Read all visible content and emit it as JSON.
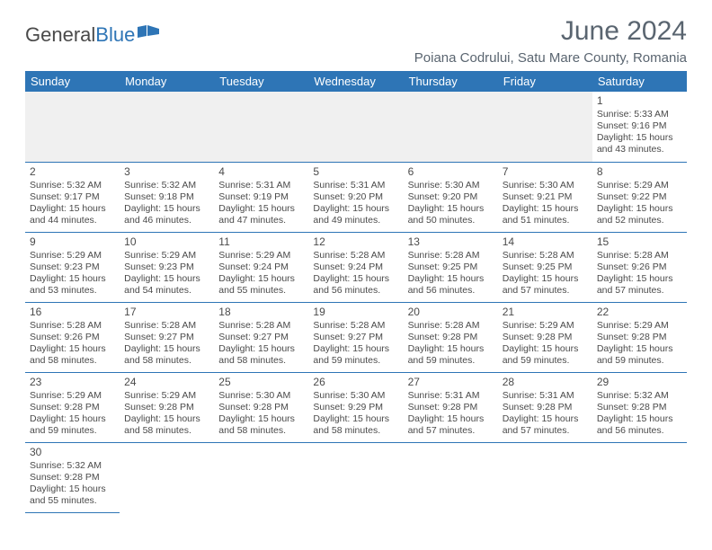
{
  "logo": {
    "text1": "General",
    "text2": "Blue"
  },
  "title": "June 2024",
  "location": "Poiana Codrului, Satu Mare County, Romania",
  "colors": {
    "header_bg": "#2e75b6",
    "header_text": "#ffffff",
    "border": "#2e75b6",
    "blank_bg": "#f0f0f0",
    "text": "#4a4a4a"
  },
  "weekdays": [
    "Sunday",
    "Monday",
    "Tuesday",
    "Wednesday",
    "Thursday",
    "Friday",
    "Saturday"
  ],
  "weeks": [
    [
      null,
      null,
      null,
      null,
      null,
      null,
      {
        "n": "1",
        "sr": "Sunrise: 5:33 AM",
        "ss": "Sunset: 9:16 PM",
        "d1": "Daylight: 15 hours",
        "d2": "and 43 minutes."
      }
    ],
    [
      {
        "n": "2",
        "sr": "Sunrise: 5:32 AM",
        "ss": "Sunset: 9:17 PM",
        "d1": "Daylight: 15 hours",
        "d2": "and 44 minutes."
      },
      {
        "n": "3",
        "sr": "Sunrise: 5:32 AM",
        "ss": "Sunset: 9:18 PM",
        "d1": "Daylight: 15 hours",
        "d2": "and 46 minutes."
      },
      {
        "n": "4",
        "sr": "Sunrise: 5:31 AM",
        "ss": "Sunset: 9:19 PM",
        "d1": "Daylight: 15 hours",
        "d2": "and 47 minutes."
      },
      {
        "n": "5",
        "sr": "Sunrise: 5:31 AM",
        "ss": "Sunset: 9:20 PM",
        "d1": "Daylight: 15 hours",
        "d2": "and 49 minutes."
      },
      {
        "n": "6",
        "sr": "Sunrise: 5:30 AM",
        "ss": "Sunset: 9:20 PM",
        "d1": "Daylight: 15 hours",
        "d2": "and 50 minutes."
      },
      {
        "n": "7",
        "sr": "Sunrise: 5:30 AM",
        "ss": "Sunset: 9:21 PM",
        "d1": "Daylight: 15 hours",
        "d2": "and 51 minutes."
      },
      {
        "n": "8",
        "sr": "Sunrise: 5:29 AM",
        "ss": "Sunset: 9:22 PM",
        "d1": "Daylight: 15 hours",
        "d2": "and 52 minutes."
      }
    ],
    [
      {
        "n": "9",
        "sr": "Sunrise: 5:29 AM",
        "ss": "Sunset: 9:23 PM",
        "d1": "Daylight: 15 hours",
        "d2": "and 53 minutes."
      },
      {
        "n": "10",
        "sr": "Sunrise: 5:29 AM",
        "ss": "Sunset: 9:23 PM",
        "d1": "Daylight: 15 hours",
        "d2": "and 54 minutes."
      },
      {
        "n": "11",
        "sr": "Sunrise: 5:29 AM",
        "ss": "Sunset: 9:24 PM",
        "d1": "Daylight: 15 hours",
        "d2": "and 55 minutes."
      },
      {
        "n": "12",
        "sr": "Sunrise: 5:28 AM",
        "ss": "Sunset: 9:24 PM",
        "d1": "Daylight: 15 hours",
        "d2": "and 56 minutes."
      },
      {
        "n": "13",
        "sr": "Sunrise: 5:28 AM",
        "ss": "Sunset: 9:25 PM",
        "d1": "Daylight: 15 hours",
        "d2": "and 56 minutes."
      },
      {
        "n": "14",
        "sr": "Sunrise: 5:28 AM",
        "ss": "Sunset: 9:25 PM",
        "d1": "Daylight: 15 hours",
        "d2": "and 57 minutes."
      },
      {
        "n": "15",
        "sr": "Sunrise: 5:28 AM",
        "ss": "Sunset: 9:26 PM",
        "d1": "Daylight: 15 hours",
        "d2": "and 57 minutes."
      }
    ],
    [
      {
        "n": "16",
        "sr": "Sunrise: 5:28 AM",
        "ss": "Sunset: 9:26 PM",
        "d1": "Daylight: 15 hours",
        "d2": "and 58 minutes."
      },
      {
        "n": "17",
        "sr": "Sunrise: 5:28 AM",
        "ss": "Sunset: 9:27 PM",
        "d1": "Daylight: 15 hours",
        "d2": "and 58 minutes."
      },
      {
        "n": "18",
        "sr": "Sunrise: 5:28 AM",
        "ss": "Sunset: 9:27 PM",
        "d1": "Daylight: 15 hours",
        "d2": "and 58 minutes."
      },
      {
        "n": "19",
        "sr": "Sunrise: 5:28 AM",
        "ss": "Sunset: 9:27 PM",
        "d1": "Daylight: 15 hours",
        "d2": "and 59 minutes."
      },
      {
        "n": "20",
        "sr": "Sunrise: 5:28 AM",
        "ss": "Sunset: 9:28 PM",
        "d1": "Daylight: 15 hours",
        "d2": "and 59 minutes."
      },
      {
        "n": "21",
        "sr": "Sunrise: 5:29 AM",
        "ss": "Sunset: 9:28 PM",
        "d1": "Daylight: 15 hours",
        "d2": "and 59 minutes."
      },
      {
        "n": "22",
        "sr": "Sunrise: 5:29 AM",
        "ss": "Sunset: 9:28 PM",
        "d1": "Daylight: 15 hours",
        "d2": "and 59 minutes."
      }
    ],
    [
      {
        "n": "23",
        "sr": "Sunrise: 5:29 AM",
        "ss": "Sunset: 9:28 PM",
        "d1": "Daylight: 15 hours",
        "d2": "and 59 minutes."
      },
      {
        "n": "24",
        "sr": "Sunrise: 5:29 AM",
        "ss": "Sunset: 9:28 PM",
        "d1": "Daylight: 15 hours",
        "d2": "and 58 minutes."
      },
      {
        "n": "25",
        "sr": "Sunrise: 5:30 AM",
        "ss": "Sunset: 9:28 PM",
        "d1": "Daylight: 15 hours",
        "d2": "and 58 minutes."
      },
      {
        "n": "26",
        "sr": "Sunrise: 5:30 AM",
        "ss": "Sunset: 9:29 PM",
        "d1": "Daylight: 15 hours",
        "d2": "and 58 minutes."
      },
      {
        "n": "27",
        "sr": "Sunrise: 5:31 AM",
        "ss": "Sunset: 9:28 PM",
        "d1": "Daylight: 15 hours",
        "d2": "and 57 minutes."
      },
      {
        "n": "28",
        "sr": "Sunrise: 5:31 AM",
        "ss": "Sunset: 9:28 PM",
        "d1": "Daylight: 15 hours",
        "d2": "and 57 minutes."
      },
      {
        "n": "29",
        "sr": "Sunrise: 5:32 AM",
        "ss": "Sunset: 9:28 PM",
        "d1": "Daylight: 15 hours",
        "d2": "and 56 minutes."
      }
    ],
    [
      {
        "n": "30",
        "sr": "Sunrise: 5:32 AM",
        "ss": "Sunset: 9:28 PM",
        "d1": "Daylight: 15 hours",
        "d2": "and 55 minutes."
      },
      null,
      null,
      null,
      null,
      null,
      null
    ]
  ]
}
